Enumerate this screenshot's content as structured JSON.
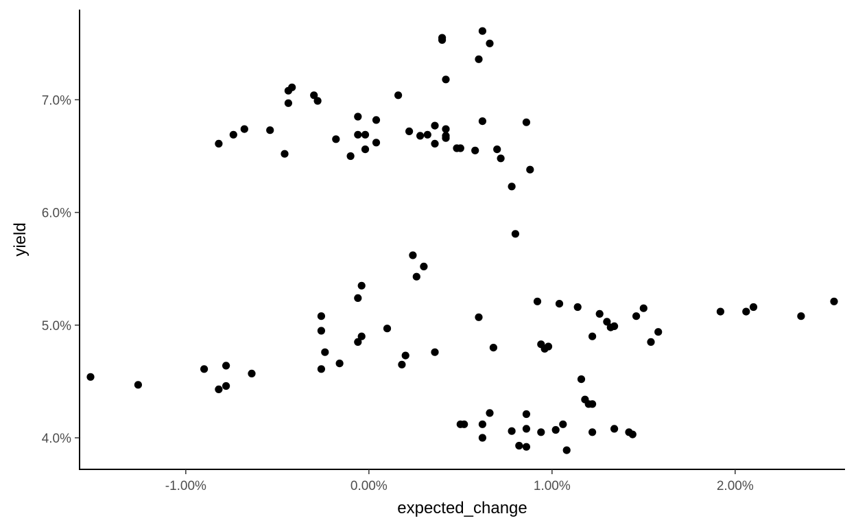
{
  "chart_data": {
    "type": "scatter",
    "title": "",
    "xlabel": "expected_change",
    "ylabel": "yield",
    "xlim": [
      -1.58,
      2.6
    ],
    "ylim": [
      3.72,
      7.8
    ],
    "x_ticks": [
      {
        "value": -1.0,
        "label": "-1.00%"
      },
      {
        "value": 0.0,
        "label": "0.00%"
      },
      {
        "value": 1.0,
        "label": "1.00%"
      },
      {
        "value": 2.0,
        "label": "2.00%"
      }
    ],
    "y_ticks": [
      {
        "value": 4.0,
        "label": "4.0%"
      },
      {
        "value": 5.0,
        "label": "5.0%"
      },
      {
        "value": 6.0,
        "label": "6.0%"
      },
      {
        "value": 7.0,
        "label": "7.0%"
      }
    ],
    "grid": false,
    "point_color": "#000000",
    "series": [
      {
        "points": [
          {
            "x": 0.4,
            "y": 7.55
          },
          {
            "x": 0.4,
            "y": 7.53
          },
          {
            "x": 0.62,
            "y": 7.61
          },
          {
            "x": 0.66,
            "y": 7.5
          },
          {
            "x": 0.6,
            "y": 7.36
          },
          {
            "x": 0.42,
            "y": 7.18
          },
          {
            "x": -0.42,
            "y": 7.11
          },
          {
            "x": -0.44,
            "y": 7.08
          },
          {
            "x": -0.3,
            "y": 7.04
          },
          {
            "x": -0.28,
            "y": 6.99
          },
          {
            "x": -0.44,
            "y": 6.97
          },
          {
            "x": 0.16,
            "y": 7.04
          },
          {
            "x": -0.06,
            "y": 6.85
          },
          {
            "x": 0.04,
            "y": 6.82
          },
          {
            "x": 0.62,
            "y": 6.81
          },
          {
            "x": 0.86,
            "y": 6.8
          },
          {
            "x": 0.36,
            "y": 6.77
          },
          {
            "x": 0.42,
            "y": 6.74
          },
          {
            "x": -0.68,
            "y": 6.74
          },
          {
            "x": -0.54,
            "y": 6.73
          },
          {
            "x": 0.22,
            "y": 6.72
          },
          {
            "x": -0.06,
            "y": 6.69
          },
          {
            "x": -0.02,
            "y": 6.69
          },
          {
            "x": 0.28,
            "y": 6.68
          },
          {
            "x": 0.32,
            "y": 6.69
          },
          {
            "x": 0.42,
            "y": 6.68
          },
          {
            "x": 0.42,
            "y": 6.66
          },
          {
            "x": -0.74,
            "y": 6.69
          },
          {
            "x": -0.18,
            "y": 6.65
          },
          {
            "x": -0.82,
            "y": 6.61
          },
          {
            "x": 0.04,
            "y": 6.62
          },
          {
            "x": 0.36,
            "y": 6.61
          },
          {
            "x": 0.48,
            "y": 6.57
          },
          {
            "x": 0.5,
            "y": 6.57
          },
          {
            "x": -0.02,
            "y": 6.56
          },
          {
            "x": 0.7,
            "y": 6.56
          },
          {
            "x": 0.58,
            "y": 6.55
          },
          {
            "x": -0.46,
            "y": 6.52
          },
          {
            "x": -0.1,
            "y": 6.5
          },
          {
            "x": 0.72,
            "y": 6.48
          },
          {
            "x": 0.88,
            "y": 6.38
          },
          {
            "x": 0.78,
            "y": 6.23
          },
          {
            "x": 0.8,
            "y": 5.81
          },
          {
            "x": 0.24,
            "y": 5.62
          },
          {
            "x": 0.3,
            "y": 5.52
          },
          {
            "x": 0.26,
            "y": 5.43
          },
          {
            "x": -0.04,
            "y": 5.35
          },
          {
            "x": -0.06,
            "y": 5.24
          },
          {
            "x": 0.92,
            "y": 5.21
          },
          {
            "x": 2.54,
            "y": 5.21
          },
          {
            "x": 1.04,
            "y": 5.19
          },
          {
            "x": 2.1,
            "y": 5.16
          },
          {
            "x": 1.14,
            "y": 5.16
          },
          {
            "x": 1.5,
            "y": 5.15
          },
          {
            "x": 1.92,
            "y": 5.12
          },
          {
            "x": 2.06,
            "y": 5.12
          },
          {
            "x": 1.26,
            "y": 5.1
          },
          {
            "x": 2.36,
            "y": 5.08
          },
          {
            "x": -0.26,
            "y": 5.08
          },
          {
            "x": 1.46,
            "y": 5.08
          },
          {
            "x": 0.6,
            "y": 5.07
          },
          {
            "x": 1.3,
            "y": 5.03
          },
          {
            "x": 1.34,
            "y": 4.99
          },
          {
            "x": 1.32,
            "y": 4.98
          },
          {
            "x": -0.26,
            "y": 4.95
          },
          {
            "x": 0.1,
            "y": 4.97
          },
          {
            "x": 1.58,
            "y": 4.94
          },
          {
            "x": 1.22,
            "y": 4.9
          },
          {
            "x": -0.04,
            "y": 4.9
          },
          {
            "x": -0.06,
            "y": 4.85
          },
          {
            "x": 1.54,
            "y": 4.85
          },
          {
            "x": 0.94,
            "y": 4.83
          },
          {
            "x": 0.98,
            "y": 4.81
          },
          {
            "x": 0.96,
            "y": 4.79
          },
          {
            "x": 0.68,
            "y": 4.8
          },
          {
            "x": -0.24,
            "y": 4.76
          },
          {
            "x": 0.36,
            "y": 4.76
          },
          {
            "x": 0.2,
            "y": 4.73
          },
          {
            "x": -0.16,
            "y": 4.66
          },
          {
            "x": 0.18,
            "y": 4.65
          },
          {
            "x": -0.78,
            "y": 4.64
          },
          {
            "x": -0.9,
            "y": 4.61
          },
          {
            "x": -0.26,
            "y": 4.61
          },
          {
            "x": -0.64,
            "y": 4.57
          },
          {
            "x": -1.52,
            "y": 4.54
          },
          {
            "x": 1.16,
            "y": 4.52
          },
          {
            "x": -1.26,
            "y": 4.47
          },
          {
            "x": -0.78,
            "y": 4.46
          },
          {
            "x": -0.82,
            "y": 4.43
          },
          {
            "x": 1.18,
            "y": 4.34
          },
          {
            "x": 1.2,
            "y": 4.3
          },
          {
            "x": 1.22,
            "y": 4.3
          },
          {
            "x": 0.66,
            "y": 4.22
          },
          {
            "x": 0.86,
            "y": 4.21
          },
          {
            "x": 1.06,
            "y": 4.12
          },
          {
            "x": 0.5,
            "y": 4.12
          },
          {
            "x": 0.52,
            "y": 4.12
          },
          {
            "x": 0.62,
            "y": 4.12
          },
          {
            "x": 0.86,
            "y": 4.08
          },
          {
            "x": 1.34,
            "y": 4.08
          },
          {
            "x": 0.78,
            "y": 4.06
          },
          {
            "x": 1.02,
            "y": 4.07
          },
          {
            "x": 0.94,
            "y": 4.05
          },
          {
            "x": 1.22,
            "y": 4.05
          },
          {
            "x": 1.42,
            "y": 4.05
          },
          {
            "x": 1.44,
            "y": 4.03
          },
          {
            "x": 0.62,
            "y": 4.0
          },
          {
            "x": 0.82,
            "y": 3.93
          },
          {
            "x": 0.86,
            "y": 3.92
          },
          {
            "x": 1.08,
            "y": 3.89
          }
        ]
      }
    ]
  }
}
